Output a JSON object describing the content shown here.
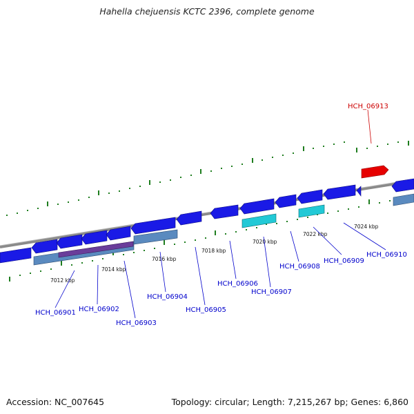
{
  "title": "Hahella chejuensis KCTC 2396, complete genome",
  "footer": {
    "accession": "Accession: NC_007645",
    "stats": "Topology: circular; Length: 7,215,267 bp; Genes: 6,860"
  },
  "colors": {
    "forward_gene": "#1a1ae6",
    "reverse_gene": "#1a1ae6",
    "highlight_gene": "#e60000",
    "cds_blue": "#5a8abf",
    "cds_cyan": "#22c9d6",
    "cds_purple": "#6a3d9a",
    "tick_green": "#1e7d1e",
    "backbone": "#8a8a8a",
    "gene_label": "#0000cc",
    "highlight_label": "#cc0000"
  },
  "scale_ticks": [
    "7012 kbp",
    "7014 kbp",
    "7016 kbp",
    "7018 kbp",
    "7020 kbp",
    "7022 kbp",
    "7024 kbp"
  ],
  "gene_labels": [
    {
      "name": "HCH_06901"
    },
    {
      "name": "HCH_06902"
    },
    {
      "name": "HCH_06903"
    },
    {
      "name": "HCH_06904"
    },
    {
      "name": "HCH_06905"
    },
    {
      "name": "HCH_06906"
    },
    {
      "name": "HCH_06907"
    },
    {
      "name": "HCH_06908"
    },
    {
      "name": "HCH_06909"
    },
    {
      "name": "HCH_06910"
    },
    {
      "name": "HCH_06913",
      "highlight": true
    }
  ]
}
